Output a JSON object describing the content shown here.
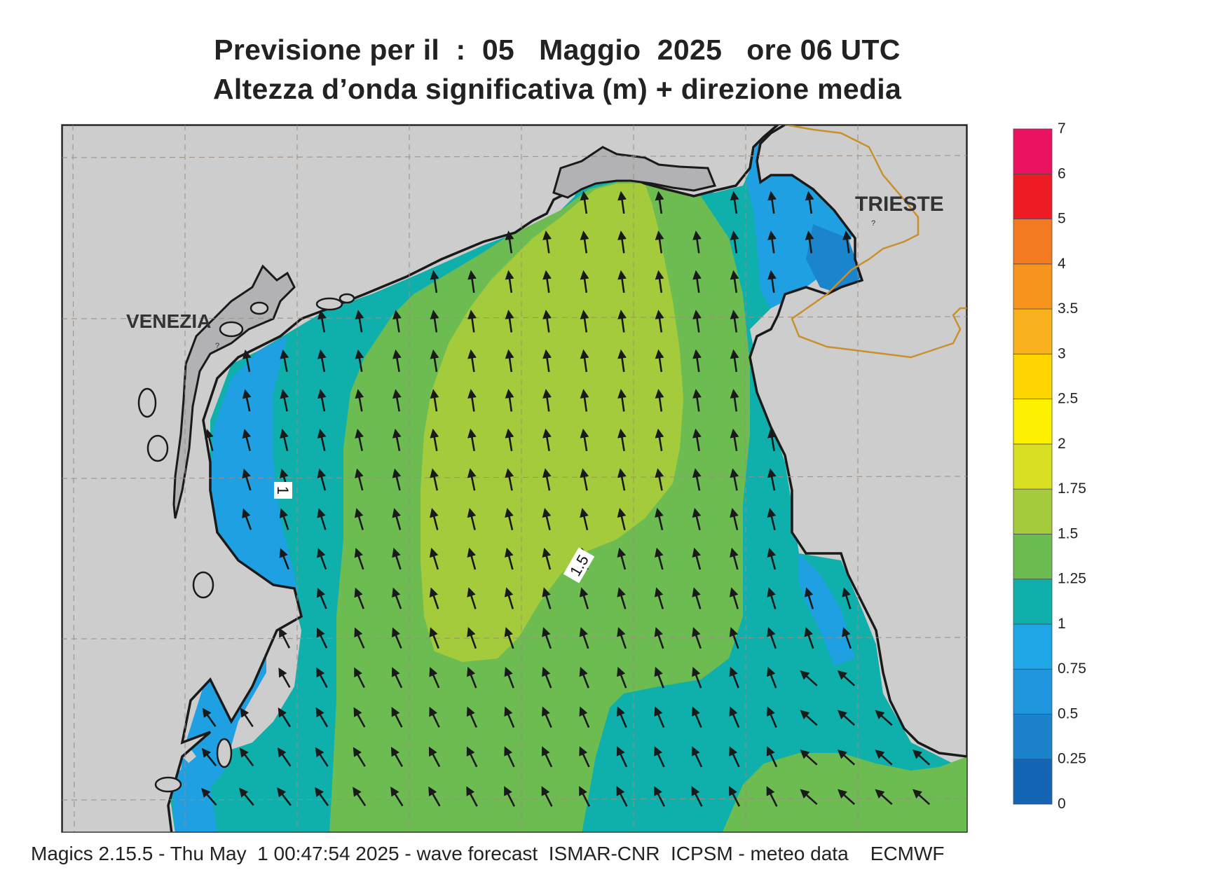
{
  "header": {
    "title_line1": "Previsione per il  :  05   Maggio  2025   ore 06 UTC",
    "title_line2": "Altezza d’onda significativa (m) + direzione media"
  },
  "map": {
    "region": "Northern Adriatic Sea",
    "place_labels": {
      "venezia": "VENEZIA",
      "trieste": "TRIESTE"
    },
    "contour_labels": {
      "c1": "1",
      "c15": "1.5"
    },
    "land_color": "#cdcdce",
    "coast_color": "#1a1a1a",
    "border_color": "#c8902e",
    "arrow_color": "#1a1a1a",
    "arrow_direction": "toward north-northwest"
  },
  "legend": {
    "title": "",
    "labels": [
      "0",
      "0.25",
      "0.5",
      "0.75",
      "1",
      "1.25",
      "1.5",
      "1.75",
      "2",
      "2.5",
      "3",
      "3.5",
      "4",
      "5",
      "6",
      "7"
    ],
    "colors": [
      "#1565b5",
      "#1b82cb",
      "#1f96dd",
      "#1ea6e6",
      "#0fb0ac",
      "#6dbc52",
      "#a4cb3c",
      "#d8e021",
      "#fff200",
      "#ffd500",
      "#f9b21e",
      "#f7941d",
      "#f47a22",
      "#ed1c24",
      "#ec1262"
    ]
  },
  "footer": {
    "text": "Magics 2.15.5 - Thu May  1 00:47:54 2025 - wave forecast  ISMAR-CNR  ICPSM - meteo data    ECMWF"
  }
}
